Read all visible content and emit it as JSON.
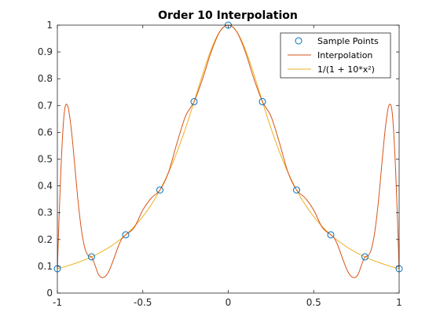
{
  "chart_data": {
    "type": "line",
    "title": "Order 10 Interpolation",
    "xlabel": "",
    "ylabel": "",
    "xlim": [
      -1,
      1
    ],
    "ylim": [
      0,
      1
    ],
    "x_ticks": [
      -1,
      -0.5,
      0,
      0.5,
      1
    ],
    "x_tick_labels": [
      "-1",
      "-0.5",
      "0",
      "0.5",
      "1"
    ],
    "y_ticks": [
      0,
      0.1,
      0.2,
      0.3,
      0.4,
      0.5,
      0.6,
      0.7,
      0.8,
      0.9,
      1
    ],
    "y_tick_labels": [
      "0",
      "0.1",
      "0.2",
      "0.3",
      "0.4",
      "0.5",
      "0.6",
      "0.7",
      "0.8",
      "0.9",
      "1"
    ],
    "grid": false,
    "legend_position": "top-right",
    "series": [
      {
        "name": "Sample Points",
        "type": "scatter",
        "color": "#0072BD",
        "x": [
          -1,
          -0.8,
          -0.6,
          -0.4,
          -0.2,
          0,
          0.2,
          0.4,
          0.6,
          0.8,
          1
        ],
        "y": [
          0.0909,
          0.1351,
          0.2174,
          0.3846,
          0.7143,
          1,
          0.7143,
          0.3846,
          0.2174,
          0.1351,
          0.0909
        ]
      },
      {
        "name": "Interpolation",
        "type": "line",
        "color": "#D95319",
        "x": [
          -1,
          -0.98,
          -0.96,
          -0.94,
          -0.92,
          -0.9,
          -0.88,
          -0.86,
          -0.84,
          -0.82,
          -0.8,
          -0.78,
          -0.76,
          -0.74,
          -0.72,
          -0.7,
          -0.68,
          -0.66,
          -0.64,
          -0.62,
          -0.6,
          -0.55,
          -0.5,
          -0.45,
          -0.4,
          -0.35,
          -0.3,
          -0.25,
          -0.2,
          -0.15,
          -0.1,
          -0.05,
          0,
          0.05,
          0.1,
          0.15,
          0.2,
          0.25,
          0.3,
          0.35,
          0.4,
          0.45,
          0.5,
          0.55,
          0.6,
          0.62,
          0.64,
          0.66,
          0.68,
          0.7,
          0.72,
          0.74,
          0.76,
          0.78,
          0.8,
          0.82,
          0.84,
          0.86,
          0.88,
          0.9,
          0.92,
          0.94,
          0.96,
          0.98,
          1
        ],
        "y": [
          0.0909,
          0.45,
          0.67,
          0.7,
          0.62,
          0.49,
          0.35,
          0.24,
          0.17,
          0.14,
          0.1351,
          0.105,
          0.07,
          0.058,
          0.062,
          0.08,
          0.11,
          0.145,
          0.18,
          0.205,
          0.2174,
          0.245,
          0.31,
          0.355,
          0.3846,
          0.45,
          0.56,
          0.66,
          0.7143,
          0.8,
          0.9,
          0.975,
          1,
          0.975,
          0.9,
          0.8,
          0.7143,
          0.66,
          0.56,
          0.45,
          0.3846,
          0.355,
          0.31,
          0.245,
          0.2174,
          0.205,
          0.18,
          0.145,
          0.11,
          0.08,
          0.062,
          0.058,
          0.07,
          0.105,
          0.1351,
          0.14,
          0.17,
          0.24,
          0.35,
          0.49,
          0.62,
          0.7,
          0.67,
          0.45,
          0.0909
        ]
      },
      {
        "name": "1/(1 + 10*x²)",
        "type": "line",
        "color": "#EDB120",
        "function": "1/(1+10*x^2)"
      }
    ]
  }
}
